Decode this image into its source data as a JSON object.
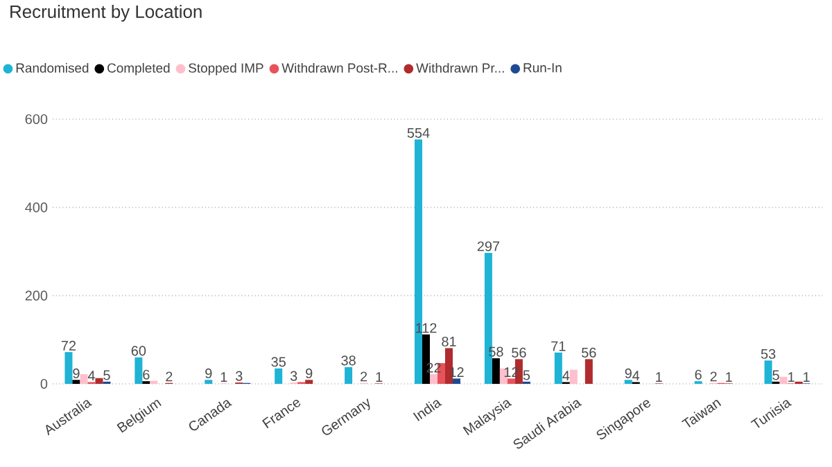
{
  "chart_data": {
    "type": "bar",
    "title": "Recruitment by Location",
    "categories": [
      "Australia",
      "Belgium",
      "Canada",
      "France",
      "Germany",
      "India",
      "Malaysia",
      "Saudi Arabia",
      "Singapore",
      "Taiwan",
      "Tunisia"
    ],
    "series": [
      {
        "name": "Randomised",
        "color": "#1fb3d5",
        "values": [
          72,
          60,
          9,
          35,
          38,
          554,
          297,
          71,
          9,
          6,
          53
        ],
        "value_labels": [
          "72",
          "60",
          "9",
          "35",
          "38",
          "554",
          "297",
          "71",
          "9",
          "6",
          "53"
        ]
      },
      {
        "name": "Completed",
        "color": "#000000",
        "values": [
          9,
          6,
          null,
          null,
          null,
          112,
          58,
          4,
          4,
          null,
          5
        ],
        "value_labels": [
          "9",
          "6",
          null,
          null,
          null,
          "112",
          "58",
          "4",
          "4",
          null,
          "5"
        ]
      },
      {
        "name": "Stopped IMP",
        "color": "#ffbfcc",
        "values": [
          22,
          7,
          1,
          3,
          2,
          22,
          35,
          32,
          null,
          2,
          16
        ],
        "value_labels": [
          null,
          null,
          "1",
          "3",
          "2",
          "22",
          null,
          null,
          null,
          "2",
          null
        ]
      },
      {
        "name": "Withdrawn Post-R...",
        "color": "#e8525a",
        "values": [
          4,
          null,
          null,
          4,
          null,
          47,
          12,
          null,
          null,
          2,
          1
        ],
        "value_labels": [
          "4",
          null,
          null,
          null,
          null,
          null,
          "12",
          null,
          null,
          null,
          "1"
        ]
      },
      {
        "name": "Withdrawn Pr...",
        "color": "#b02b2e",
        "values": [
          13,
          2,
          3,
          9,
          1,
          81,
          56,
          56,
          1,
          1,
          5
        ],
        "value_labels": [
          null,
          "2",
          "3",
          "9",
          "1",
          "81",
          "56",
          "56",
          "1",
          "1",
          null
        ]
      },
      {
        "name": "Run-In",
        "color": "#1f4a93",
        "values": [
          5,
          null,
          2,
          null,
          null,
          12,
          5,
          null,
          null,
          null,
          1
        ],
        "value_labels": [
          "5",
          null,
          null,
          null,
          null,
          "12",
          "5",
          null,
          null,
          null,
          "1"
        ]
      }
    ],
    "ylim": [
      0,
      600
    ],
    "yticks": [
      0,
      200,
      400,
      600
    ],
    "grid": "y",
    "legend": "top"
  }
}
